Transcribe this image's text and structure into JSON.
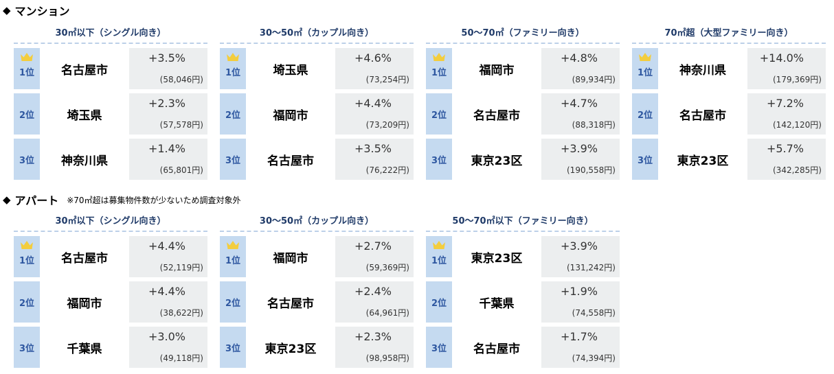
{
  "mansion": {
    "symbol": "◆",
    "title": "マンション",
    "panels": [
      {
        "header": "30㎡以下（シングル向き）",
        "rows": [
          {
            "rank": "1位",
            "city": "名古屋市",
            "pct": "+3.5%",
            "rent": "(58,046円)"
          },
          {
            "rank": "2位",
            "city": "埼玉県",
            "pct": "+2.3%",
            "rent": "(57,578円)"
          },
          {
            "rank": "3位",
            "city": "神奈川県",
            "pct": "+1.4%",
            "rent": "(65,801円)"
          }
        ]
      },
      {
        "header": "30～50㎡（カップル向き）",
        "rows": [
          {
            "rank": "1位",
            "city": "埼玉県",
            "pct": "+4.6%",
            "rent": "(73,254円)"
          },
          {
            "rank": "2位",
            "city": "福岡市",
            "pct": "+4.4%",
            "rent": "(73,209円)"
          },
          {
            "rank": "3位",
            "city": "名古屋市",
            "pct": "+3.5%",
            "rent": "(76,222円)"
          }
        ]
      },
      {
        "header": "50～70㎡（ファミリー向き）",
        "rows": [
          {
            "rank": "1位",
            "city": "福岡市",
            "pct": "+4.8%",
            "rent": "(89,934円)"
          },
          {
            "rank": "2位",
            "city": "名古屋市",
            "pct": "+4.7%",
            "rent": "(88,318円)"
          },
          {
            "rank": "3位",
            "city": "東京23区",
            "pct": "+3.9%",
            "rent": "(190,558円)"
          }
        ]
      },
      {
        "header": "70㎡超（大型ファミリー向き）",
        "rows": [
          {
            "rank": "1位",
            "city": "神奈川県",
            "pct": "+14.0%",
            "rent": "(179,369円)"
          },
          {
            "rank": "2位",
            "city": "名古屋市",
            "pct": "+7.2%",
            "rent": "(142,120円)"
          },
          {
            "rank": "3位",
            "city": "東京23区",
            "pct": "+5.7%",
            "rent": "(342,285円)"
          }
        ]
      }
    ]
  },
  "apartment": {
    "symbol": "◆",
    "title": "アパート",
    "note": "※70㎡超は募集物件数が少ないため調査対象外",
    "panels": [
      {
        "header": "30㎡以下（シングル向き）",
        "rows": [
          {
            "rank": "1位",
            "city": "名古屋市",
            "pct": "+4.4%",
            "rent": "(52,119円)"
          },
          {
            "rank": "2位",
            "city": "福岡市",
            "pct": "+4.4%",
            "rent": "(38,622円)"
          },
          {
            "rank": "3位",
            "city": "千葉県",
            "pct": "+3.0%",
            "rent": "(49,118円)"
          }
        ]
      },
      {
        "header": "30～50㎡（カップル向き）",
        "rows": [
          {
            "rank": "1位",
            "city": "福岡市",
            "pct": "+2.7%",
            "rent": "(59,369円)"
          },
          {
            "rank": "2位",
            "city": "名古屋市",
            "pct": "+2.4%",
            "rent": "(64,961円)"
          },
          {
            "rank": "3位",
            "city": "東京23区",
            "pct": "+2.3%",
            "rent": "(98,958円)"
          }
        ]
      },
      {
        "header": "50～70㎡以下（ファミリー向き）",
        "rows": [
          {
            "rank": "1位",
            "city": "東京23区",
            "pct": "+3.9%",
            "rent": "(131,242円)"
          },
          {
            "rank": "2位",
            "city": "千葉県",
            "pct": "+1.9%",
            "rent": "(74,558円)"
          },
          {
            "rank": "3位",
            "city": "名古屋市",
            "pct": "+1.7%",
            "rent": "(74,394円)"
          }
        ]
      }
    ]
  },
  "colors": {
    "header_text": "#1f3a68",
    "rank_bg": "#c5daf0",
    "rank_text": "#2e57a0",
    "row_bg": "#eceeef",
    "crown": "#f3cd3e"
  }
}
